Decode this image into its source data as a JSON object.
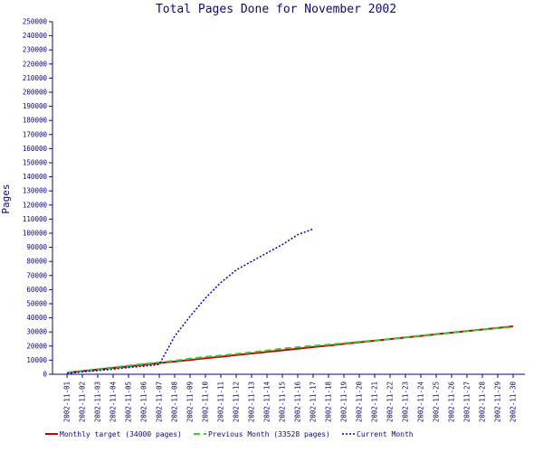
{
  "chart_data": {
    "type": "line",
    "title": "Total Pages Done for November 2002",
    "xlabel": "",
    "ylabel": "Pages",
    "ylim": [
      0,
      250000
    ],
    "ytick_step": 10000,
    "grid": false,
    "legend_position": "bottom",
    "categories": [
      "2002-11-01",
      "2002-11-02",
      "2002-11-03",
      "2002-11-04",
      "2002-11-05",
      "2002-11-06",
      "2002-11-07",
      "2002-11-08",
      "2002-11-09",
      "2002-11-10",
      "2002-11-11",
      "2002-11-12",
      "2002-11-13",
      "2002-11-14",
      "2002-11-15",
      "2002-11-16",
      "2002-11-17",
      "2002-11-18",
      "2002-11-19",
      "2002-11-20",
      "2002-11-21",
      "2002-11-22",
      "2002-11-23",
      "2002-11-24",
      "2002-11-25",
      "2002-11-26",
      "2002-11-27",
      "2002-11-28",
      "2002-11-29",
      "2002-11-30"
    ],
    "series": [
      {
        "name": "Monthly target (34000 pages)",
        "color": "#cc0000",
        "style": "solid",
        "values": [
          1133,
          2267,
          3400,
          4533,
          5667,
          6800,
          7933,
          9067,
          10200,
          11333,
          12467,
          13600,
          14733,
          15867,
          17000,
          18133,
          19267,
          20400,
          21533,
          22667,
          23800,
          24933,
          26067,
          27200,
          28333,
          29467,
          30600,
          31733,
          32867,
          34000
        ]
      },
      {
        "name": "Previous Month (33528 pages)",
        "color": "#33cc33",
        "style": "dashed",
        "values": [
          1200,
          2400,
          3700,
          4900,
          6100,
          7300,
          8400,
          9600,
          11000,
          12300,
          13300,
          14400,
          15600,
          16800,
          18200,
          19200,
          20100,
          21000,
          22000,
          23000,
          24000,
          25000,
          26200,
          27400,
          28500,
          29600,
          30800,
          31800,
          32700,
          33528
        ]
      },
      {
        "name": "Current Month",
        "color": "#0000cc",
        "style": "dotted",
        "values": [
          500,
          1800,
          2600,
          3600,
          4800,
          5700,
          7000,
          27000,
          41000,
          54000,
          65000,
          74000,
          80000,
          86000,
          92000,
          99000,
          103000,
          null,
          null,
          null,
          null,
          null,
          null,
          null,
          null,
          null,
          null,
          null,
          null,
          null
        ]
      }
    ]
  }
}
